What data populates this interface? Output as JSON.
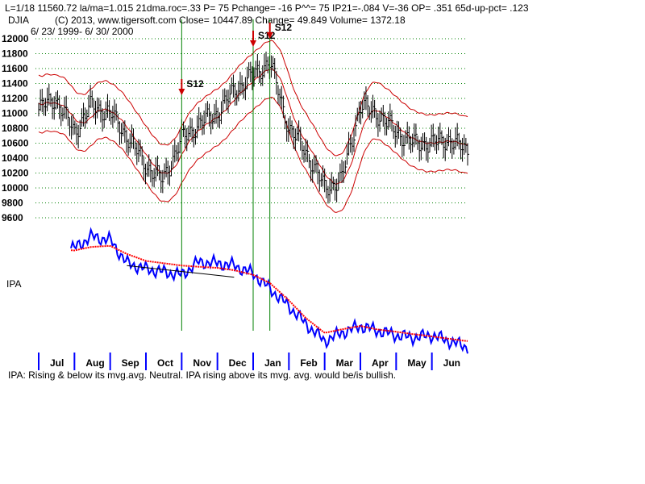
{
  "chart_data": {
    "type": "line",
    "header": {
      "line1": "L=1/18  11560.72  la/ma=1.015 21dma.roc=.33 P=  75 Pchange= -16 P^^= 75 IP21=-.084 V=-36 OP= .351 65d-up-pct= .123",
      "symbol": "DJIA",
      "line2": "(C) 2013, www.tigersoft.com   Close=  10447.89  Change= 49.849 Volume= 1372.18",
      "date_range": "6/ 23/ 1999- 6/ 30/ 2000"
    },
    "price_panel": {
      "ylim": [
        9600,
        12000
      ],
      "yticks": [
        "12000",
        "11800",
        "11600",
        "11400",
        "11200",
        "11000",
        "10800",
        "10600",
        "10400",
        "10200",
        "10000",
        "9800",
        "9600"
      ],
      "grid": true,
      "grid_color": "#008000",
      "bar_color": "#000000",
      "band_color": "#cc0000",
      "x": [
        "Jul-1",
        "Jul-15",
        "Aug-1",
        "Aug-15",
        "Sep-1",
        "Sep-15",
        "Oct-1",
        "Oct-15",
        "Nov-1",
        "Nov-15",
        "Dec-1",
        "Dec-15",
        "Jan-1",
        "Jan-15",
        "Feb-1",
        "Feb-15",
        "Mar-1",
        "Mar-15",
        "Apr-1",
        "Apr-15",
        "May-1",
        "May-15",
        "Jun-1",
        "Jun-15",
        "Jun-30"
      ],
      "close": [
        11050,
        11200,
        10750,
        11100,
        11000,
        10700,
        10300,
        10100,
        10650,
        10850,
        11000,
        11300,
        11500,
        11700,
        10800,
        10500,
        10000,
        10100,
        11100,
        11000,
        10750,
        10600,
        10600,
        10650,
        10500
      ]
    },
    "signals": [
      {
        "label": "S12",
        "date": "Nov-1"
      },
      {
        "label": "S12",
        "date": "Jan-1"
      },
      {
        "label": "S12",
        "date": "Jan-15"
      }
    ],
    "ipa_panel": {
      "label": "IPA",
      "ipa_color": "#0000ff",
      "mavg_color": "#ff0000",
      "x": [
        "Jul-1",
        "Aug-1",
        "Aug-15",
        "Sep-1",
        "Sep-15",
        "Oct-1",
        "Nov-1",
        "Nov-15",
        "Dec-1",
        "Dec-15",
        "Jan-1",
        "Jan-15",
        "Feb-1",
        "Feb-15",
        "Mar-1",
        "Mar-15",
        "Apr-1",
        "Apr-15",
        "May-1",
        "May-15",
        "Jun-1",
        "Jun-30"
      ],
      "ipa": [
        0.84,
        0.85,
        0.95,
        0.92,
        0.72,
        0.67,
        0.62,
        0.73,
        0.72,
        0.7,
        0.63,
        0.5,
        0.35,
        0.2,
        0.05,
        0.12,
        0.18,
        0.14,
        0.1,
        0.08,
        0.1,
        0.0
      ],
      "mavg": [
        0.85,
        0.83,
        0.86,
        0.87,
        0.8,
        0.74,
        0.7,
        0.69,
        0.68,
        0.66,
        0.62,
        0.55,
        0.4,
        0.25,
        0.12,
        0.15,
        0.18,
        0.15,
        0.13,
        0.11,
        0.09,
        0.05
      ]
    },
    "x_axis": {
      "months": [
        "Jul",
        "Aug",
        "Sep",
        "Oct",
        "Nov",
        "Dec",
        "Jan",
        "Feb",
        "Mar",
        "Apr",
        "May",
        "Jun"
      ],
      "tick_color": "#0000ff"
    },
    "footer": "IPA: Rising & below its mvg.avg. Neutral. IPA rising above its mvg. avg. would be/is bullish."
  }
}
